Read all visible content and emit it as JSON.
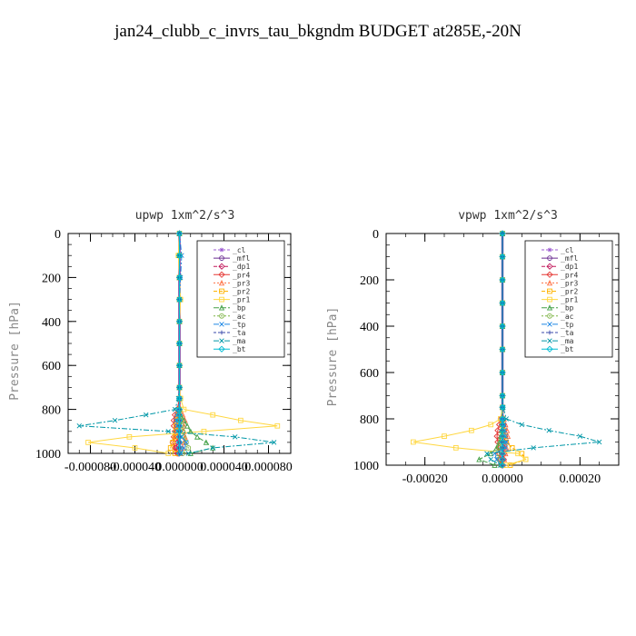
{
  "title": "jan24_clubb_c_invrs_tau_bkgndm  BUDGET at285E,-20N",
  "legend_entries": [
    "_cl",
    "_mfl",
    "_dp1",
    "_pr4",
    "_pr3",
    "_pr2",
    "_pr1",
    "_bp",
    "_ac",
    "_tp",
    "_ta",
    "_ma",
    "_bt"
  ],
  "series_colors": {
    "_cl": "#9b59d0",
    "_mfl": "#6a2c91",
    "_dp1": "#c2185b",
    "_pr4": "#e53935",
    "_pr3": "#ff7043",
    "_pr2": "#ffb300",
    "_pr1": "#ffd740",
    "_bp": "#43a047",
    "_ac": "#7cb342",
    "_tp": "#1e88e5",
    "_ta": "#3949ab",
    "_ma": "#0097a7",
    "_bt": "#00bcd4"
  },
  "chart_data": [
    {
      "type": "line",
      "title": "upwp   1xm^2/s^3",
      "ylabel": "Pressure [hPa]",
      "xlim": [
        -0.0001,
        0.0001
      ],
      "ylim": [
        1000,
        0
      ],
      "xticks": [
        -8e-05,
        -4e-05,
        0,
        4e-05,
        8e-05
      ],
      "xtick_labels": [
        "-0.000080",
        "-0.000040",
        "0.000000",
        "0.000040",
        "0.000080"
      ],
      "yticks": [
        0,
        200,
        400,
        600,
        800,
        1000
      ],
      "ytick_labels": [
        "0",
        "200",
        "400",
        "600",
        "800",
        "1000"
      ],
      "legend": "top-right",
      "pressure": [
        0,
        100,
        200,
        300,
        400,
        500,
        600,
        700,
        750,
        800,
        825,
        850,
        875,
        900,
        925,
        950,
        975,
        1000
      ],
      "series": [
        {
          "name": "_cl",
          "values": [
            0,
            0,
            0,
            0,
            0,
            0,
            0,
            0,
            0,
            0,
            0,
            0,
            0,
            0,
            0,
            0,
            0,
            0
          ]
        },
        {
          "name": "_mfl",
          "values": [
            0,
            0,
            0,
            0,
            0,
            0,
            0,
            0,
            0,
            0,
            0,
            0,
            0,
            0,
            0,
            0,
            0,
            0
          ]
        },
        {
          "name": "_dp1",
          "values": [
            0,
            0,
            0,
            0,
            0,
            0,
            0,
            0,
            0,
            0,
            -1e-06,
            -2e-06,
            -2e-06,
            -2e-06,
            -2e-06,
            -2e-06,
            -3e-06,
            -1e-06
          ]
        },
        {
          "name": "_pr4",
          "values": [
            0,
            0,
            0,
            0,
            0,
            0,
            0,
            0,
            0,
            -2e-06,
            -4e-06,
            -5e-06,
            -5e-06,
            -4e-06,
            -5e-06,
            -6e-06,
            -4e-06,
            -2e-06
          ]
        },
        {
          "name": "_pr3",
          "values": [
            0,
            0,
            0,
            0,
            0,
            0,
            0,
            0,
            0,
            1e-06,
            3e-06,
            5e-06,
            4e-06,
            4e-06,
            5e-06,
            4e-06,
            3e-06,
            1e-06
          ]
        },
        {
          "name": "_pr2",
          "values": [
            0,
            0,
            0,
            0,
            0,
            0,
            0,
            0,
            0,
            0,
            -1e-06,
            -2e-06,
            -3e-06,
            -3e-06,
            -4e-06,
            -6e-06,
            -8e-06,
            -4e-06
          ]
        },
        {
          "name": "_pr1",
          "values": [
            0,
            -1e-06,
            0,
            1e-06,
            0,
            0,
            0,
            0,
            1e-06,
            4e-06,
            3e-05,
            5.5e-05,
            8.8e-05,
            2.2e-05,
            -4.5e-05,
            -8.2e-05,
            -4e-05,
            -1e-05
          ]
        },
        {
          "name": "_bp",
          "values": [
            0,
            0,
            0,
            0,
            0,
            0,
            0,
            0,
            0,
            0,
            1e-06,
            4e-06,
            7e-06,
            1e-05,
            1.6e-05,
            2.4e-05,
            3e-05,
            1e-05
          ]
        },
        {
          "name": "_ac",
          "values": [
            0,
            0,
            0,
            0,
            0,
            0,
            0,
            0,
            0,
            0,
            0,
            1e-06,
            2e-06,
            3e-06,
            4e-06,
            6e-06,
            8e-06,
            3e-06
          ]
        },
        {
          "name": "_tp",
          "values": [
            0,
            2e-06,
            1e-06,
            0,
            0,
            0,
            0,
            0,
            0,
            -1e-06,
            -2e-06,
            -3e-06,
            -2e-06,
            -2e-06,
            2e-06,
            6e-06,
            4e-06,
            1e-06
          ]
        },
        {
          "name": "_ta",
          "values": [
            0,
            0,
            0,
            0,
            0,
            0,
            0,
            0,
            0,
            0,
            0,
            0,
            0,
            0,
            0,
            0,
            0,
            0
          ]
        },
        {
          "name": "_ma",
          "values": [
            0,
            0,
            0,
            0,
            0,
            0,
            0,
            0,
            -1e-06,
            -4e-06,
            -3e-05,
            -5.8e-05,
            -9e-05,
            -1e-05,
            5e-05,
            8.5e-05,
            3e-05,
            8e-06
          ]
        },
        {
          "name": "_bt",
          "values": [
            0,
            0,
            0,
            0,
            0,
            0,
            0,
            0,
            0,
            0,
            0,
            0,
            0,
            0,
            0,
            0,
            0,
            0
          ]
        }
      ]
    },
    {
      "type": "line",
      "title": "vpwp   1xm^2/s^3",
      "ylabel": "Pressure [hPa]",
      "xlim": [
        -0.0003,
        0.0003
      ],
      "ylim": [
        1000,
        0
      ],
      "xticks": [
        -0.0002,
        0,
        0.0002
      ],
      "xtick_labels": [
        "-0.00020",
        "0.00000",
        "0.00020"
      ],
      "yticks": [
        0,
        200,
        400,
        600,
        800,
        1000
      ],
      "ytick_labels": [
        "0",
        "200",
        "400",
        "600",
        "800",
        "1000"
      ],
      "legend": "top-right",
      "pressure": [
        0,
        100,
        200,
        300,
        400,
        500,
        600,
        700,
        750,
        800,
        825,
        850,
        875,
        900,
        925,
        950,
        975,
        1000
      ],
      "series": [
        {
          "name": "_cl",
          "values": [
            0,
            0,
            0,
            0,
            0,
            0,
            0,
            0,
            0,
            0,
            0,
            0,
            0,
            0,
            0,
            0,
            0,
            0
          ]
        },
        {
          "name": "_mfl",
          "values": [
            0,
            0,
            0,
            0,
            0,
            0,
            0,
            0,
            0,
            0,
            0,
            0,
            0,
            0,
            0,
            0,
            0,
            0
          ]
        },
        {
          "name": "_dp1",
          "values": [
            0,
            0,
            0,
            0,
            0,
            0,
            0,
            0,
            0,
            0,
            3e-06,
            5e-06,
            6e-06,
            5e-06,
            4e-06,
            4e-06,
            3e-06,
            1e-06
          ]
        },
        {
          "name": "_pr4",
          "values": [
            0,
            0,
            0,
            0,
            0,
            0,
            0,
            0,
            0,
            -4e-06,
            -8e-06,
            -1.2e-05,
            -1.4e-05,
            -1.2e-05,
            -1e-05,
            -8e-06,
            -5e-06,
            -2e-06
          ]
        },
        {
          "name": "_pr3",
          "values": [
            0,
            0,
            0,
            0,
            0,
            0,
            0,
            0,
            0,
            4e-06,
            8e-06,
            1.2e-05,
            1.4e-05,
            1.2e-05,
            1e-05,
            8e-06,
            5e-06,
            2e-06
          ]
        },
        {
          "name": "_pr2",
          "values": [
            0,
            0,
            0,
            0,
            0,
            0,
            0,
            0,
            0,
            0,
            0,
            2e-06,
            5e-06,
            1e-05,
            2.5e-05,
            5e-05,
            6e-05,
            2e-05
          ]
        },
        {
          "name": "_pr1",
          "values": [
            0,
            0,
            0,
            0,
            0,
            0,
            0,
            0,
            0,
            -5e-06,
            -3e-05,
            -8e-05,
            -0.00015,
            -0.00023,
            -0.00012,
            4e-05,
            6e-05,
            1e-05
          ]
        },
        {
          "name": "_bp",
          "values": [
            0,
            0,
            0,
            0,
            0,
            0,
            0,
            0,
            0,
            0,
            0,
            -2e-06,
            -4e-06,
            -8e-06,
            -1.5e-05,
            -3e-05,
            -6e-05,
            -2e-05
          ]
        },
        {
          "name": "_ac",
          "values": [
            0,
            0,
            0,
            0,
            0,
            0,
            0,
            0,
            0,
            0,
            0,
            0,
            -2e-06,
            -4e-06,
            -8e-06,
            -1.2e-05,
            -1e-05,
            -4e-06
          ]
        },
        {
          "name": "_tp",
          "values": [
            0,
            0,
            0,
            0,
            0,
            0,
            0,
            0,
            0,
            0,
            4e-06,
            6e-06,
            8e-06,
            1e-05,
            8e-06,
            -2e-05,
            -1.5e-05,
            -5e-06
          ]
        },
        {
          "name": "_ta",
          "values": [
            0,
            0,
            0,
            0,
            0,
            0,
            0,
            0,
            0,
            0,
            0,
            0,
            0,
            0,
            0,
            0,
            0,
            0
          ]
        },
        {
          "name": "_ma",
          "values": [
            0,
            0,
            0,
            0,
            0,
            0,
            0,
            0,
            2e-06,
            1e-05,
            5e-05,
            0.00012,
            0.0002,
            0.00025,
            8e-05,
            -4e-05,
            -3e-05,
            -5e-06
          ]
        },
        {
          "name": "_bt",
          "values": [
            0,
            0,
            0,
            0,
            0,
            0,
            0,
            0,
            0,
            0,
            0,
            0,
            0,
            0,
            0,
            0,
            0,
            0
          ]
        }
      ]
    }
  ]
}
